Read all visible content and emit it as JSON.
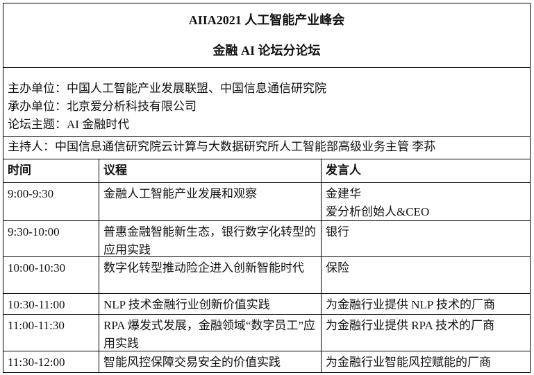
{
  "title": {
    "line1": "AIIA2021 人工智能产业峰会",
    "line2": "金融 AI 论坛分论坛"
  },
  "info": {
    "organizer": "主办单位：中国人工智能产业发展联盟、中国信息通信研究院",
    "co_organizer": "承办单位：北京爱分析科技有限公司",
    "theme": "论坛主题：AI 金融时代"
  },
  "host": "主持人：中国信息通信研究院云计算与大数据研究所人工智能部高级业务主管 李荪",
  "headers": {
    "time": "时间",
    "agenda": "议程",
    "speaker": "发言人"
  },
  "rows": [
    {
      "time": "9:00-9:30",
      "agenda": "金融人工智能产业发展和观察",
      "speaker": "金建华",
      "speaker2": "爱分析创始人&CEO"
    },
    {
      "time": "9:30-10:00",
      "agenda": "普惠金融智能新生态，银行数字化转型的应用实践",
      "speaker": "银行"
    },
    {
      "time": "10:00-10:30",
      "agenda": "数字化转型推动险企进入创新智能时代",
      "speaker": "保险"
    },
    {
      "time": "10:30-11:00",
      "agenda": "NLP 技术金融行业创新价值实践",
      "speaker": "为金融行业提供 NLP 技术的厂商"
    },
    {
      "time": "11:00-11:30",
      "agenda": "RPA 爆发式发展，金融领域“数字员工”应用实践",
      "speaker": "为金融行业提供 RPA 技术的厂商"
    },
    {
      "time": "11:30-12:00",
      "agenda": "智能风控保障交易安全的价值实践",
      "speaker": "为金融行业智能风控赋能的厂商"
    }
  ]
}
